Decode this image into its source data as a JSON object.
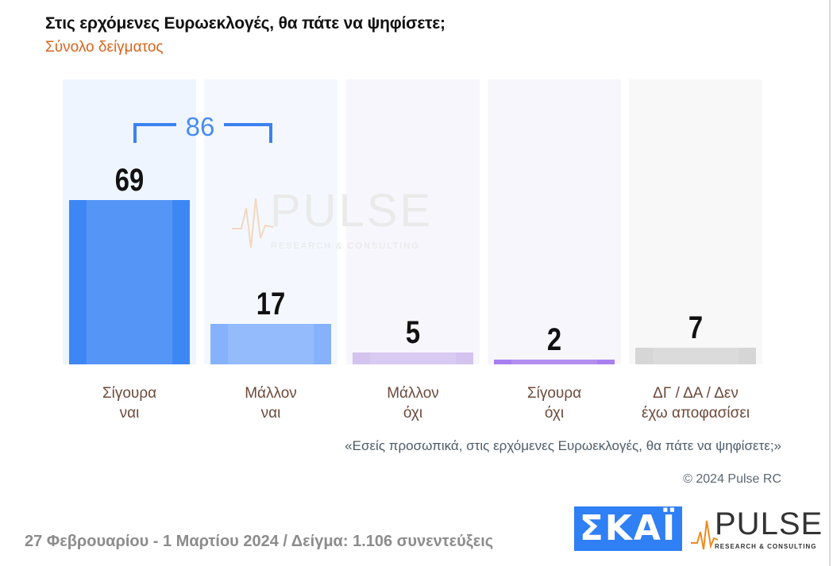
{
  "title": "Στις ερχόμενες Ευρωεκλογές, θα πάτε να ψηφίσετε;",
  "subtitle": "Σύνολο δείγματος",
  "question": "«Εσείς προσωπικά, στις ερχόμενες Ευρωεκλογές, θα πάτε να ψηφίσετε;»",
  "copyright": "© 2024 Pulse RC",
  "footer": "27 Φεβρουαρίου - 1 Μαρτίου 2024  /  Δείγμα:  1.106 συνεντεύξεις",
  "logos": {
    "skai": "ΣΚΑΪ",
    "pulse": "PULSE",
    "pulse_sub": "RESEARCH & CONSULTING"
  },
  "chart_data": {
    "type": "bar",
    "categories": [
      [
        "Σίγουρα",
        "ναι"
      ],
      [
        "Μάλλον",
        "ναι"
      ],
      [
        "Μάλλον",
        "όχι"
      ],
      [
        "Σίγουρα",
        "όχι"
      ],
      [
        "ΔΓ / ΔΑ / Δεν",
        "έχω αποφασίσει"
      ]
    ],
    "values": [
      69,
      17,
      5,
      2,
      7
    ],
    "colors": [
      "#3d87f5",
      "#86b2fb",
      "#d4c3ef",
      "#a97ff0",
      "#d6d6d6"
    ],
    "bracket": {
      "label": "86",
      "spans": [
        0,
        1
      ],
      "color": "#3b82f0"
    },
    "ylim": [
      0,
      69
    ]
  }
}
